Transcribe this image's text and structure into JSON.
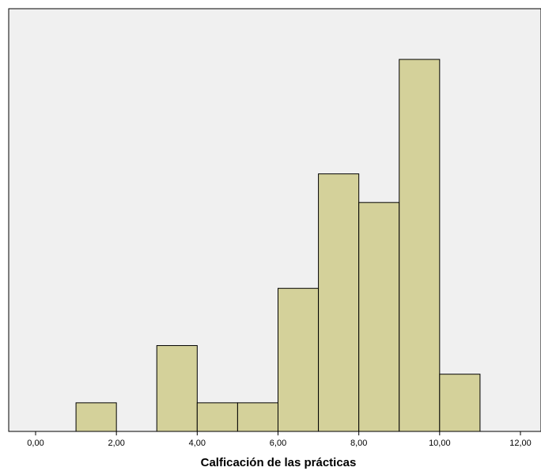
{
  "chart_data": {
    "type": "histogram",
    "title": "",
    "xlabel": "Calficación de las prácticas",
    "ylabel": "",
    "xlim": [
      0,
      12
    ],
    "x_ticks": [
      "0,00",
      "2,00",
      "4,00",
      "6,00",
      "8,00",
      "10,00",
      "12,00"
    ],
    "bin_width": 1,
    "bins": [
      {
        "start": 1,
        "end": 2,
        "count": 1
      },
      {
        "start": 3,
        "end": 4,
        "count": 3
      },
      {
        "start": 4,
        "end": 5,
        "count": 1
      },
      {
        "start": 5,
        "end": 6,
        "count": 1
      },
      {
        "start": 6,
        "end": 7,
        "count": 5
      },
      {
        "start": 7,
        "end": 8,
        "count": 9
      },
      {
        "start": 8,
        "end": 9,
        "count": 8
      },
      {
        "start": 9,
        "end": 10,
        "count": 13
      },
      {
        "start": 10,
        "end": 11,
        "count": 2
      }
    ],
    "colors": {
      "bar_fill": "#d4d19a",
      "bar_stroke": "#000000",
      "plot_background": "#f0f0f0"
    },
    "grid": false,
    "legend": "none"
  }
}
